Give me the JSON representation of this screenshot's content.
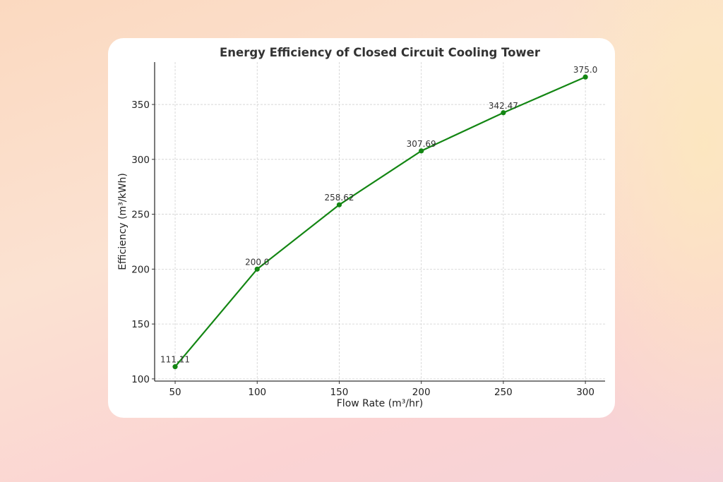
{
  "chart_data": {
    "type": "line",
    "title": "Energy Efficiency of Closed Circuit Cooling Tower",
    "xlabel": "Flow Rate (m³/hr)",
    "ylabel": "Efficiency (m³/kWh)",
    "x": [
      50,
      100,
      150,
      200,
      250,
      300
    ],
    "values": [
      111.11,
      200.0,
      258.62,
      307.69,
      342.47,
      375.0
    ],
    "data_labels": [
      "111.11",
      "200.0",
      "258.62",
      "307.69",
      "342.47",
      "375.0"
    ],
    "xticks": [
      50,
      100,
      150,
      200,
      250,
      300
    ],
    "yticks": [
      100,
      150,
      200,
      250,
      300,
      350
    ],
    "xlim": [
      37.5,
      312
    ],
    "ylim": [
      98,
      388.6
    ],
    "grid": true,
    "line_color": "#138613",
    "marker": "circle"
  }
}
